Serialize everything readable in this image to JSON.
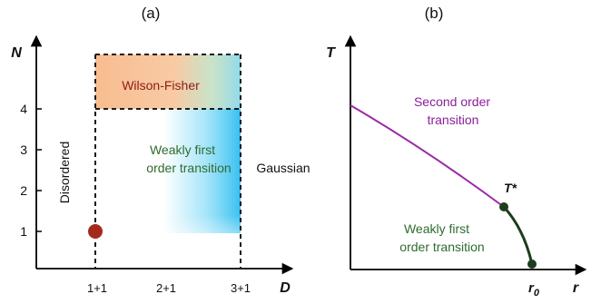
{
  "panel_a": {
    "label": "(a)",
    "y_axis_label": "N",
    "x_axis_label": "D",
    "y_ticks": [
      "1",
      "2",
      "3",
      "4"
    ],
    "x_ticks": [
      "1+1",
      "2+1",
      "3+1"
    ],
    "region_wilson_fisher": "Wilson-Fisher",
    "region_disordered": "Disordered",
    "region_weakly_line1": "Weakly first",
    "region_weakly_line2": "order transition",
    "region_gaussian": "Gaussian",
    "colors": {
      "wilson_fisher_fill": "#f7b98a",
      "weakly_first_fill": "#3cc6f2",
      "wilson_fisher_text": "#8b1d14",
      "weakly_first_text": "#2f6b2f",
      "point": "#a52a1e"
    }
  },
  "panel_b": {
    "label": "(b)",
    "y_axis_label": "T",
    "x_axis_label": "r",
    "x_tick_label": "r",
    "x_tick_subscript": "0",
    "critical_point_label": "T*",
    "second_order_line1": "Second order",
    "second_order_line2": "transition",
    "weakly_line1": "Weakly first",
    "weakly_line2": "order transition",
    "colors": {
      "second_order_curve": "#9b2aa6",
      "weakly_first_curve": "#1e3d1e",
      "second_order_text": "#8a1f98",
      "weakly_first_text": "#2f6b2f"
    }
  }
}
